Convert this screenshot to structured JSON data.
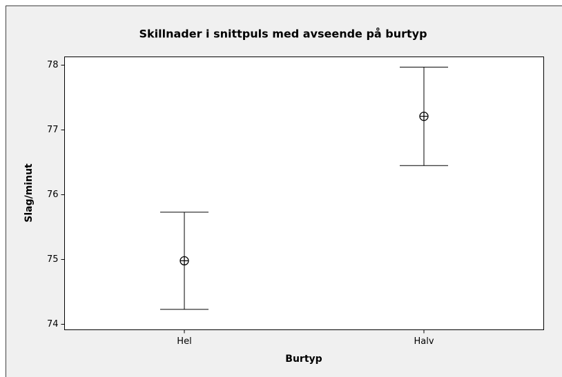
{
  "chart_data": {
    "type": "interval",
    "title": "Skillnader i snittpuls med avseende på burtyp",
    "x_label": "Burtyp",
    "y_label": "Slag/minut",
    "categories": [
      "Hel",
      "Halv"
    ],
    "values": [
      74.98,
      77.21
    ],
    "errors": [
      0.75,
      0.76
    ],
    "color": "#000000",
    "ylim": [
      73.915,
      78.128
    ],
    "yticks": [
      74,
      75,
      76,
      77,
      78
    ]
  }
}
